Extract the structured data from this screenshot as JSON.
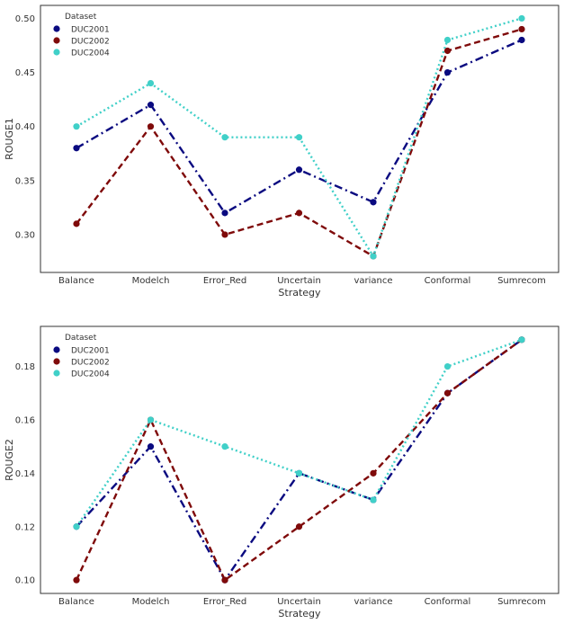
{
  "chart_data": [
    {
      "type": "line",
      "title": "",
      "xlabel": "Strategy",
      "ylabel": "ROUGE1",
      "categories": [
        "Balance",
        "Modelch",
        "Error_Red",
        "Uncertain",
        "variance",
        "Conformal",
        "Sumrecom"
      ],
      "ylim": [
        0.265,
        0.512
      ],
      "yticks": [
        "0.30",
        "0.35",
        "0.40",
        "0.45",
        "0.50"
      ],
      "legend_title": "Dataset",
      "legend_position": "top-left",
      "series": [
        {
          "name": "DUC2001",
          "color": "#0a0a80",
          "dash": "dashdot",
          "values": [
            0.38,
            0.42,
            0.32,
            0.36,
            0.33,
            0.45,
            0.48
          ]
        },
        {
          "name": "DUC2002",
          "color": "#7f0a0a",
          "dash": "dashed",
          "values": [
            0.31,
            0.4,
            0.3,
            0.32,
            0.28,
            0.47,
            0.49
          ]
        },
        {
          "name": "DUC2004",
          "color": "#40d0c8",
          "dash": "dotted",
          "values": [
            0.4,
            0.44,
            0.39,
            0.39,
            0.28,
            0.48,
            0.5
          ]
        }
      ]
    },
    {
      "type": "line",
      "title": "",
      "xlabel": "Strategy",
      "ylabel": "ROUGE2",
      "categories": [
        "Balance",
        "Modelch",
        "Error_Red",
        "Uncertain",
        "variance",
        "Conformal",
        "Sumrecom"
      ],
      "ylim": [
        0.095,
        0.195
      ],
      "yticks": [
        "0.10",
        "0.12",
        "0.14",
        "0.16",
        "0.18"
      ],
      "legend_title": "Dataset",
      "legend_position": "top-left",
      "series": [
        {
          "name": "DUC2001",
          "color": "#0a0a80",
          "dash": "dashdot",
          "values": [
            0.12,
            0.15,
            0.1,
            0.14,
            0.13,
            0.17,
            0.19
          ]
        },
        {
          "name": "DUC2002",
          "color": "#7f0a0a",
          "dash": "dashed",
          "values": [
            0.1,
            0.16,
            0.1,
            0.12,
            0.14,
            0.17,
            0.19
          ]
        },
        {
          "name": "DUC2004",
          "color": "#40d0c8",
          "dash": "dotted",
          "values": [
            0.12,
            0.16,
            0.15,
            0.14,
            0.13,
            0.18,
            0.19
          ]
        }
      ]
    }
  ]
}
